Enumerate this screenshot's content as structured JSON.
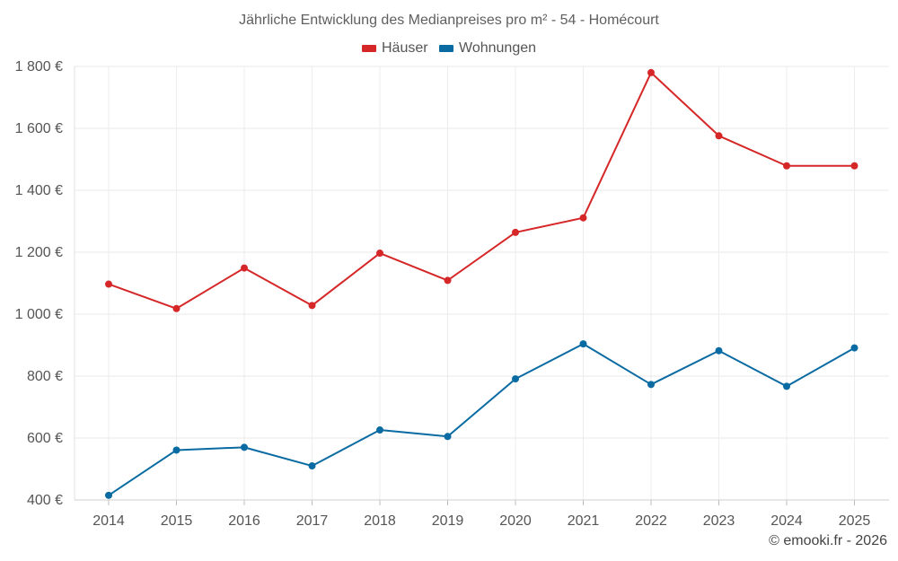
{
  "chart_data": {
    "type": "line",
    "title": "Jährliche Entwicklung des Medianpreises pro m² - 54 - Homécourt",
    "categories": [
      "2014",
      "2015",
      "2016",
      "2017",
      "2018",
      "2019",
      "2020",
      "2021",
      "2022",
      "2023",
      "2024",
      "2025"
    ],
    "series": [
      {
        "name": "Häuser",
        "color": "#d62728",
        "values": [
          1097,
          1018,
          1149,
          1028,
          1197,
          1109,
          1264,
          1311,
          1780,
          1576,
          1479,
          1479
        ]
      },
      {
        "name": "Wohnungen",
        "color": "#0a6ba3",
        "values": [
          415,
          561,
          570,
          510,
          626,
          605,
          791,
          904,
          773,
          882,
          767,
          891
        ]
      }
    ],
    "ylim": [
      400,
      1820
    ],
    "yticks": [
      400,
      600,
      800,
      1000,
      1200,
      1400,
      1600,
      1800
    ],
    "ytick_labels": [
      "400 €",
      "600 €",
      "800 €",
      "1 000 €",
      "1 200 €",
      "1 400 €",
      "1 600 €",
      "1 800 €"
    ],
    "grid": true,
    "legend_position": "top-center"
  },
  "footer": {
    "copyright": "© emooki.fr - 2026"
  }
}
